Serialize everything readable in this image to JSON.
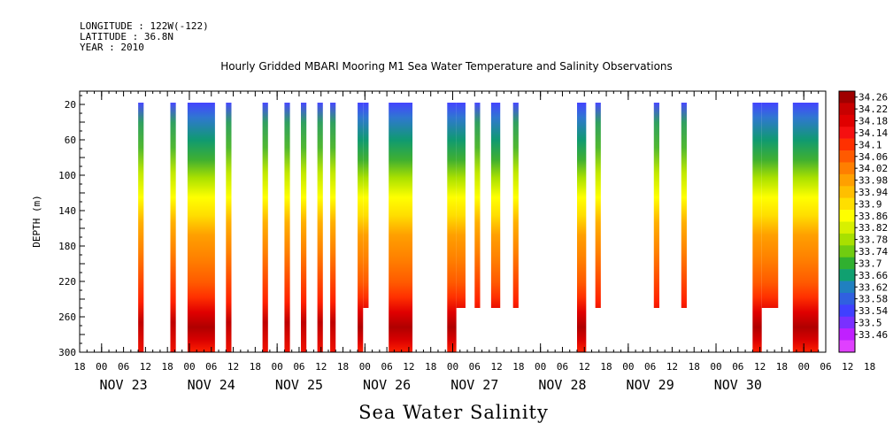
{
  "header": {
    "longitude": "LONGITUDE : 122W(-122)",
    "latitude": "LATITUDE : 36.8N",
    "year": "YEAR : 2010"
  },
  "chart_data": {
    "type": "heatmap",
    "title": "Hourly Gridded MBARI Mooring M1 Sea Water Temperature and Salinity Observations",
    "subtitle": "Sea Water Salinity",
    "ylabel": "DEPTH (m)",
    "xlabel": "",
    "x_unit": "hours since NOV 22 18:00",
    "xlim": [
      0,
      204
    ],
    "ylim": [
      300,
      5
    ],
    "y_ticks": [
      20,
      60,
      100,
      140,
      180,
      220,
      260,
      300
    ],
    "hour_tick_labels": [
      "18",
      "00",
      "06",
      "12",
      "18",
      "00",
      "06",
      "12",
      "18",
      "00",
      "06",
      "12",
      "18",
      "00",
      "06",
      "12",
      "18",
      "00",
      "06",
      "12",
      "18",
      "00",
      "06",
      "12",
      "18",
      "00",
      "06",
      "12",
      "18",
      "00",
      "06",
      "12",
      "18",
      "00",
      "06",
      "12",
      "18"
    ],
    "day_labels": [
      "NOV 23",
      "NOV 24",
      "NOV 25",
      "NOV 26",
      "NOV 27",
      "NOV 28",
      "NOV 29",
      "NOV 30"
    ],
    "colorbar_levels": [
      "34.26",
      "34.22",
      "34.18",
      "34.14",
      "34.1",
      "34.06",
      "34.02",
      "33.98",
      "33.94",
      "33.9",
      "33.86",
      "33.82",
      "33.78",
      "33.74",
      "33.7",
      "33.66",
      "33.62",
      "33.58",
      "33.54",
      "33.5",
      "33.46"
    ],
    "colorbar_colors": [
      "#a00000",
      "#c80000",
      "#e00000",
      "#f51010",
      "#ff3000",
      "#ff5a00",
      "#ff7f00",
      "#ffa000",
      "#ffbf00",
      "#ffdf00",
      "#ffff00",
      "#d8f000",
      "#a8e000",
      "#70cc10",
      "#30b030",
      "#10a070",
      "#2080c0",
      "#3060e0",
      "#4040ff",
      "#7a30ff",
      "#c020ff",
      "#e040ff"
    ],
    "series": [
      {
        "start": 16.0,
        "end": 17.5,
        "bottom": 300,
        "profile": "thin"
      },
      {
        "start": 24.8,
        "end": 26.3,
        "bottom": 300,
        "profile": "thin"
      },
      {
        "start": 29.5,
        "end": 37.0,
        "bottom": 300,
        "profile": "wide"
      },
      {
        "start": 40.0,
        "end": 41.5,
        "bottom": 300,
        "profile": "thin"
      },
      {
        "start": 50.0,
        "end": 51.5,
        "bottom": 300,
        "profile": "thin"
      },
      {
        "start": 56.0,
        "end": 57.5,
        "bottom": 300,
        "profile": "thin"
      },
      {
        "start": 60.5,
        "end": 62.0,
        "bottom": 300,
        "profile": "thin"
      },
      {
        "start": 65.0,
        "end": 66.5,
        "bottom": 300,
        "profile": "thin"
      },
      {
        "start": 68.5,
        "end": 70.0,
        "bottom": 300,
        "profile": "thin"
      },
      {
        "start": 76.0,
        "end": 77.5,
        "bottom": 300,
        "profile": "wide"
      },
      {
        "start": 77.5,
        "end": 79.0,
        "bottom": 250,
        "profile": "wide"
      },
      {
        "start": 84.5,
        "end": 91.0,
        "bottom": 300,
        "profile": "wide"
      },
      {
        "start": 100.5,
        "end": 103.0,
        "bottom": 300,
        "profile": "wide"
      },
      {
        "start": 103.0,
        "end": 105.5,
        "bottom": 250,
        "profile": "wide"
      },
      {
        "start": 108.0,
        "end": 109.5,
        "bottom": 250,
        "profile": "thin"
      },
      {
        "start": 112.5,
        "end": 115.0,
        "bottom": 250,
        "profile": "wide"
      },
      {
        "start": 118.5,
        "end": 120.0,
        "bottom": 250,
        "profile": "thin"
      },
      {
        "start": 136.0,
        "end": 138.5,
        "bottom": 300,
        "profile": "wide"
      },
      {
        "start": 141.0,
        "end": 142.5,
        "bottom": 250,
        "profile": "thin"
      },
      {
        "start": 157.0,
        "end": 158.5,
        "bottom": 250,
        "profile": "thin"
      },
      {
        "start": 164.5,
        "end": 166.0,
        "bottom": 250,
        "profile": "thin"
      },
      {
        "start": 184.0,
        "end": 186.5,
        "bottom": 300,
        "profile": "wide"
      },
      {
        "start": 186.5,
        "end": 191.0,
        "bottom": 250,
        "profile": "wide"
      },
      {
        "start": 195.0,
        "end": 202.0,
        "bottom": 300,
        "profile": "wide"
      }
    ]
  }
}
